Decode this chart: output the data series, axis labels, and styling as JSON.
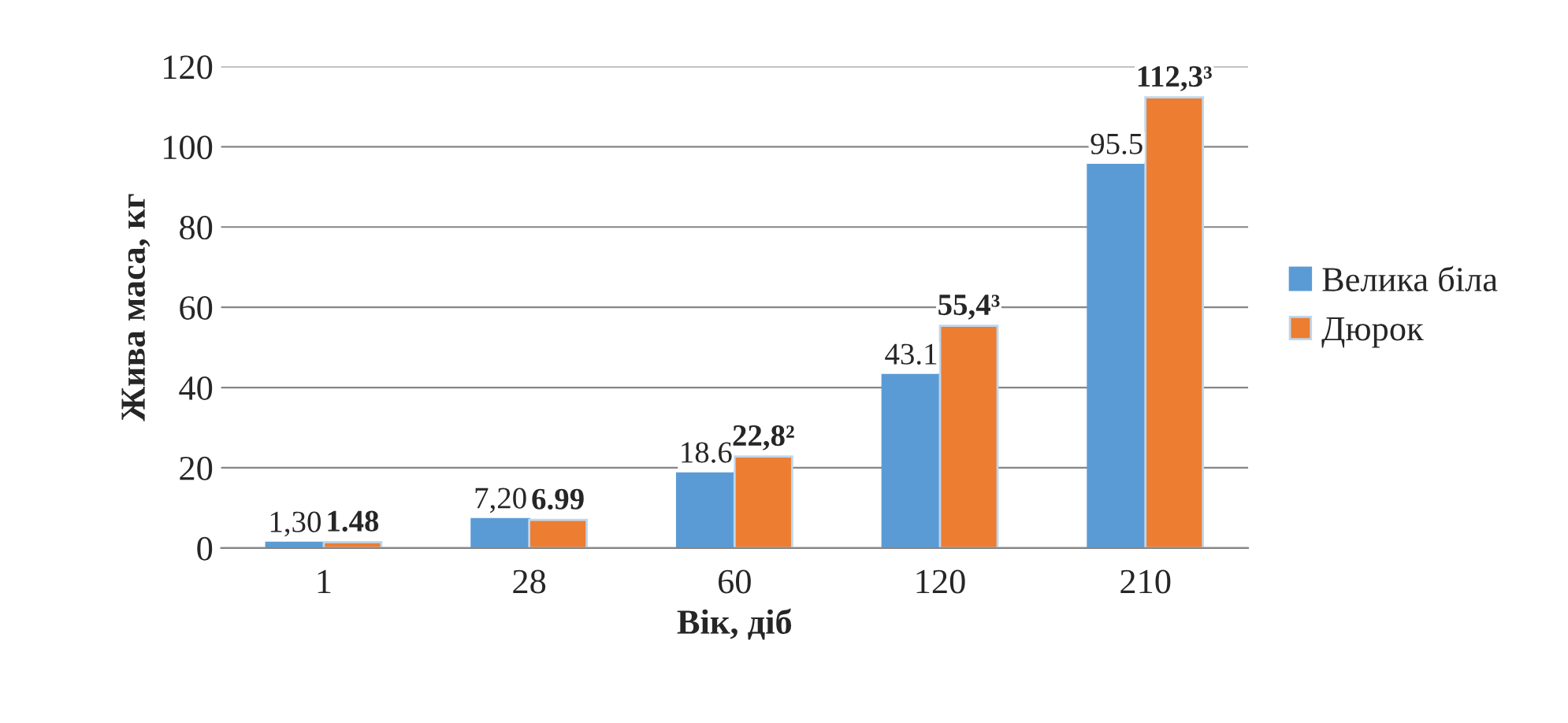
{
  "chart_data": {
    "type": "bar",
    "xlabel": "Вік, діб",
    "ylabel": "Жива маса, кг",
    "categories": [
      "1",
      "28",
      "60",
      "120",
      "210"
    ],
    "series": [
      {
        "name": "Велика біла",
        "color": "#5b9bd5",
        "values": [
          1.3,
          7.2,
          18.6,
          43.1,
          95.5
        ],
        "value_labels": [
          "1,30",
          "7,20",
          "18.6",
          "43.1",
          "95.5"
        ]
      },
      {
        "name": "Дюрок",
        "color": "#ed7d31",
        "values": [
          1.48,
          6.99,
          22.8,
          55.4,
          112.3
        ],
        "value_labels": [
          "1.48",
          "6.99",
          "22,8²",
          "55,4³",
          "112,3³"
        ]
      }
    ],
    "ylim": [
      0,
      120
    ],
    "yticks": [
      0,
      20,
      40,
      60,
      80,
      100,
      120
    ],
    "grid": "y",
    "legend": "right"
  }
}
